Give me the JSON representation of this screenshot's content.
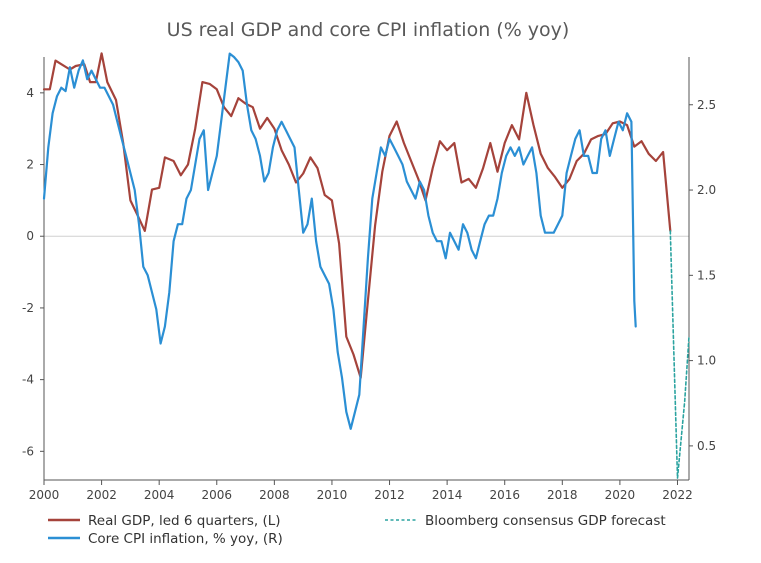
{
  "chart_data": {
    "type": "line",
    "title": "US real GDP and core CPI inflation (% yoy)",
    "x_ticks": [
      "2000",
      "2002",
      "2004",
      "2006",
      "2008",
      "2010",
      "2012",
      "2014",
      "2016",
      "2018",
      "2020",
      "2022"
    ],
    "xlim": [
      2000,
      2022.4
    ],
    "y_left": {
      "ticks": [
        "4",
        "2",
        "0",
        "-2",
        "-4",
        "-6"
      ],
      "lim": [
        -6.8,
        5.0
      ]
    },
    "y_right": {
      "ticks": [
        "2.5",
        "2.0",
        "1.5",
        "1.0",
        "0.5"
      ],
      "lim": [
        0.3,
        2.78
      ]
    },
    "grid": "zero line only",
    "legend": "bottom",
    "colors": {
      "gdp": "#a5433b",
      "cpi": "#2b8fd4",
      "forecast": "#2ba3a0",
      "axis": "#555555",
      "zero": "#d0d0d0"
    },
    "series": [
      {
        "name": "Real GDP, led 6 quarters, (L)",
        "axis": "left",
        "style": "solid",
        "x": [
          2000.0,
          2000.2,
          2000.4,
          2000.6,
          2000.9,
          2001.1,
          2001.4,
          2001.6,
          2001.8,
          2002.0,
          2002.2,
          2002.5,
          2002.75,
          2003.0,
          2003.3,
          2003.5,
          2003.75,
          2004.0,
          2004.2,
          2004.5,
          2004.75,
          2005.0,
          2005.25,
          2005.5,
          2005.75,
          2006.0,
          2006.25,
          2006.5,
          2006.75,
          2007.0,
          2007.25,
          2007.5,
          2007.75,
          2008.0,
          2008.25,
          2008.5,
          2008.75,
          2009.0,
          2009.25,
          2009.5,
          2009.75,
          2010.0,
          2010.25,
          2010.5,
          2010.75,
          2011.0,
          2011.25,
          2011.5,
          2011.75,
          2012.0,
          2012.25,
          2012.5,
          2012.75,
          2013.0,
          2013.25,
          2013.5,
          2013.75,
          2014.0,
          2014.25,
          2014.5,
          2014.75,
          2015.0,
          2015.25,
          2015.5,
          2015.75,
          2016.0,
          2016.25,
          2016.5,
          2016.75,
          2017.0,
          2017.25,
          2017.5,
          2017.75,
          2018.0,
          2018.25,
          2018.5,
          2018.75,
          2019.0,
          2019.25,
          2019.5,
          2019.75,
          2020.0,
          2020.25,
          2020.5,
          2020.75,
          2021.0,
          2021.25,
          2021.5,
          2021.75
        ],
        "values": [
          4.1,
          4.1,
          4.9,
          4.8,
          4.65,
          4.75,
          4.8,
          4.3,
          4.3,
          5.1,
          4.3,
          3.8,
          2.6,
          1.0,
          0.5,
          0.15,
          1.3,
          1.35,
          2.2,
          2.1,
          1.7,
          2.0,
          3.0,
          4.3,
          4.25,
          4.1,
          3.6,
          3.35,
          3.85,
          3.7,
          3.6,
          3.0,
          3.3,
          3.0,
          2.4,
          2.0,
          1.5,
          1.75,
          2.2,
          1.9,
          1.15,
          1.0,
          -0.2,
          -2.8,
          -3.3,
          -3.95,
          -1.8,
          0.3,
          1.8,
          2.8,
          3.2,
          2.6,
          2.1,
          1.6,
          1.0,
          1.9,
          2.65,
          2.4,
          2.6,
          1.5,
          1.6,
          1.35,
          1.9,
          2.6,
          1.8,
          2.6,
          3.1,
          2.7,
          4.0,
          3.1,
          2.3,
          1.9,
          1.65,
          1.35,
          1.6,
          2.1,
          2.3,
          2.7,
          2.8,
          2.85,
          3.15,
          3.2,
          3.1,
          2.5,
          2.65,
          2.3,
          2.1,
          2.35,
          0.15
        ]
      },
      {
        "name": "Core CPI inflation, % yoy, (R)",
        "axis": "right",
        "style": "solid",
        "x": [
          2000.0,
          2000.15,
          2000.3,
          2000.45,
          2000.6,
          2000.75,
          2000.9,
          2001.05,
          2001.2,
          2001.35,
          2001.5,
          2001.65,
          2001.8,
          2001.95,
          2002.1,
          2002.25,
          2002.4,
          2002.55,
          2002.7,
          2002.85,
          2003.0,
          2003.15,
          2003.3,
          2003.45,
          2003.6,
          2003.75,
          2003.9,
          2004.05,
          2004.2,
          2004.35,
          2004.5,
          2004.65,
          2004.8,
          2004.95,
          2005.1,
          2005.25,
          2005.4,
          2005.55,
          2005.7,
          2005.85,
          2006.0,
          2006.15,
          2006.3,
          2006.45,
          2006.6,
          2006.75,
          2006.9,
          2007.05,
          2007.2,
          2007.35,
          2007.5,
          2007.65,
          2007.8,
          2007.95,
          2008.1,
          2008.25,
          2008.4,
          2008.55,
          2008.7,
          2008.85,
          2009.0,
          2009.15,
          2009.3,
          2009.45,
          2009.6,
          2009.75,
          2009.9,
          2010.05,
          2010.2,
          2010.35,
          2010.5,
          2010.65,
          2010.8,
          2010.95,
          2011.1,
          2011.25,
          2011.4,
          2011.55,
          2011.7,
          2011.85,
          2012.0,
          2012.15,
          2012.3,
          2012.45,
          2012.6,
          2012.75,
          2012.9,
          2013.05,
          2013.2,
          2013.35,
          2013.5,
          2013.65,
          2013.8,
          2013.95,
          2014.1,
          2014.25,
          2014.4,
          2014.55,
          2014.7,
          2014.85,
          2015.0,
          2015.15,
          2015.3,
          2015.45,
          2015.6,
          2015.75,
          2015.9,
          2016.05,
          2016.2,
          2016.35,
          2016.5,
          2016.65,
          2016.8,
          2016.95,
          2017.1,
          2017.25,
          2017.4,
          2017.55,
          2017.7,
          2017.85,
          2018.0,
          2018.15,
          2018.3,
          2018.45,
          2018.6,
          2018.75,
          2018.9,
          2019.05,
          2019.2,
          2019.35,
          2019.5,
          2019.65,
          2019.8,
          2019.95,
          2020.1,
          2020.25,
          2020.4,
          2020.5,
          2020.55
        ],
        "values": [
          1.95,
          2.25,
          2.45,
          2.55,
          2.6,
          2.58,
          2.72,
          2.6,
          2.7,
          2.76,
          2.65,
          2.7,
          2.65,
          2.6,
          2.6,
          2.55,
          2.5,
          2.4,
          2.3,
          2.2,
          2.1,
          2.0,
          1.8,
          1.55,
          1.5,
          1.4,
          1.3,
          1.1,
          1.2,
          1.4,
          1.7,
          1.8,
          1.8,
          1.95,
          2.0,
          2.15,
          2.3,
          2.35,
          2.0,
          2.1,
          2.2,
          2.4,
          2.6,
          2.8,
          2.78,
          2.75,
          2.7,
          2.5,
          2.35,
          2.3,
          2.2,
          2.05,
          2.1,
          2.25,
          2.35,
          2.4,
          2.35,
          2.3,
          2.25,
          2.0,
          1.75,
          1.8,
          1.95,
          1.7,
          1.55,
          1.5,
          1.45,
          1.3,
          1.05,
          0.9,
          0.7,
          0.6,
          0.7,
          0.8,
          1.2,
          1.6,
          1.95,
          2.1,
          2.25,
          2.2,
          2.3,
          2.25,
          2.2,
          2.15,
          2.05,
          2.0,
          1.95,
          2.05,
          2.0,
          1.85,
          1.75,
          1.7,
          1.7,
          1.6,
          1.75,
          1.7,
          1.65,
          1.8,
          1.75,
          1.65,
          1.6,
          1.7,
          1.8,
          1.85,
          1.85,
          1.95,
          2.1,
          2.2,
          2.25,
          2.2,
          2.25,
          2.15,
          2.2,
          2.25,
          2.1,
          1.85,
          1.75,
          1.75,
          1.75,
          1.8,
          1.85,
          2.1,
          2.2,
          2.3,
          2.35,
          2.2,
          2.2,
          2.1,
          2.1,
          2.3,
          2.35,
          2.2,
          2.3,
          2.4,
          2.35,
          2.45,
          2.4,
          1.35,
          1.2
        ]
      },
      {
        "name": "Bloomberg consensus GDP forecast",
        "axis": "left",
        "style": "dashed",
        "x": [
          2021.75,
          2022.0,
          2022.25,
          2022.4
        ],
        "values": [
          0.15,
          -6.75,
          -4.6,
          -2.8
        ]
      }
    ]
  }
}
